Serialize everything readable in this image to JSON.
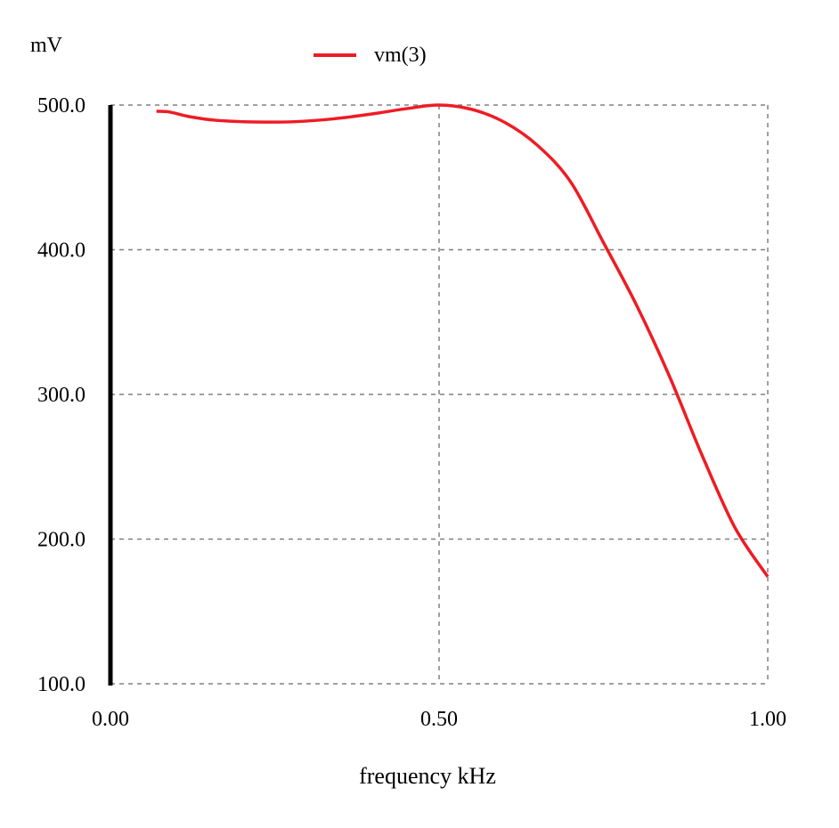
{
  "chart_data": {
    "type": "line",
    "title": "",
    "xlabel": "frequency kHz",
    "ylabel": "mV",
    "xlim": [
      0,
      1.0
    ],
    "ylim": [
      100,
      500
    ],
    "xticks": [
      "0.00",
      "0.50",
      "1.00"
    ],
    "xtick_values": [
      0,
      0.5,
      1.0
    ],
    "yticks": [
      "100.0",
      "200.0",
      "300.0",
      "400.0",
      "500.0"
    ],
    "ytick_values": [
      100,
      200,
      300,
      400,
      500
    ],
    "grid": true,
    "legend": "top-center",
    "series": [
      {
        "name": "vm(3)",
        "color": "#ee1c24",
        "x": [
          0.07,
          0.09,
          0.12,
          0.16,
          0.22,
          0.28,
          0.34,
          0.4,
          0.45,
          0.5,
          0.55,
          0.6,
          0.65,
          0.7,
          0.75,
          0.8,
          0.85,
          0.9,
          0.95,
          1.0
        ],
        "y": [
          495.7,
          495.2,
          492,
          489.5,
          488.3,
          488.5,
          490.5,
          494,
          497.5,
          500,
          497,
          488,
          472,
          447,
          405,
          362,
          313,
          258,
          208,
          174
        ]
      }
    ]
  }
}
